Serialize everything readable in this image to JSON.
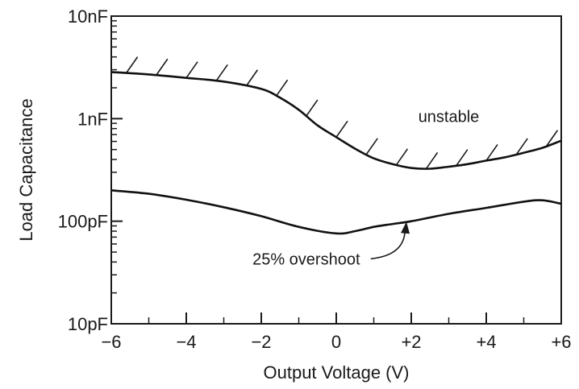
{
  "chart_data": {
    "type": "line",
    "title": "",
    "xlabel": "Output Voltage  (V)",
    "ylabel": "Load Capacitance",
    "x_scale": "linear",
    "y_scale": "log",
    "xlim": [
      -6,
      6
    ],
    "ylim_farads": [
      1e-11,
      1e-08
    ],
    "x_ticks": [
      -6,
      -4,
      -2,
      0,
      2,
      4,
      6
    ],
    "x_tick_labels": [
      "−6",
      "−4",
      "−2",
      "0",
      "+2",
      "+4",
      "+6"
    ],
    "y_ticks_farads": [
      1e-11,
      1e-10,
      1e-09,
      1e-08
    ],
    "y_tick_labels": [
      "10pF",
      "100pF",
      "1nF",
      "10nF"
    ],
    "grid": false,
    "legend": "none",
    "series": [
      {
        "id": "unstable_boundary",
        "x": [
          -6,
          -5,
          -4,
          -3,
          -2,
          -1.5,
          -1,
          -0.5,
          0,
          0.5,
          1,
          1.5,
          2,
          2.5,
          3,
          3.5,
          4,
          4.5,
          5,
          5.5,
          6
        ],
        "y_farads": [
          2.85e-09,
          2.7e-09,
          2.5e-09,
          2.3e-09,
          1.95e-09,
          1.6e-09,
          1.22e-09,
          8.6e-10,
          6.6e-10,
          5.1e-10,
          4.1e-10,
          3.6e-10,
          3.3e-10,
          3.25e-10,
          3.4e-10,
          3.6e-10,
          3.9e-10,
          4.2e-10,
          4.65e-10,
          5.2e-10,
          6.1e-10
        ],
        "color": "#111111",
        "hatched_side": "above"
      },
      {
        "id": "overshoot_25",
        "x": [
          -6,
          -5,
          -4,
          -3,
          -2,
          -1,
          0,
          0.5,
          1,
          1.5,
          2,
          3,
          4,
          5,
          5.5,
          6
        ],
        "y_farads": [
          2e-10,
          1.85e-10,
          1.62e-10,
          1.37e-10,
          1.12e-10,
          8.8e-11,
          7.6e-11,
          8e-11,
          8.8e-11,
          9.4e-11,
          1e-10,
          1.18e-10,
          1.35e-10,
          1.55e-10,
          1.6e-10,
          1.48e-10
        ],
        "color": "#111111"
      }
    ],
    "annotations": [
      {
        "text": "unstable",
        "x": 3.0,
        "y_farads": 1.05e-09
      },
      {
        "text": "25% overshoot",
        "x": -0.8,
        "y_farads": 4.3e-11,
        "arrow_to": {
          "x": 1.85,
          "y_farads": 9.9e-11
        }
      }
    ]
  }
}
